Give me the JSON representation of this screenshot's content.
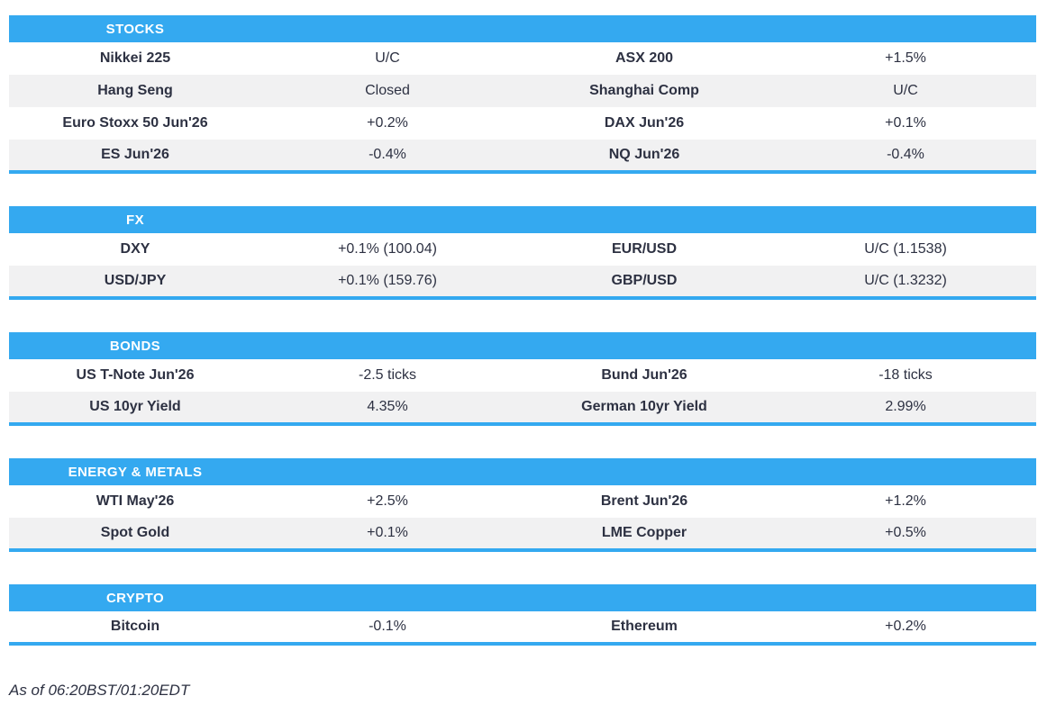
{
  "colors": {
    "accent_blue": "#34a9f0",
    "row_alt": "#f1f1f2",
    "text": "#2d3142",
    "header_text": "#ffffff"
  },
  "sections": {
    "stocks": {
      "title": "STOCKS",
      "rows": [
        {
          "l_label": "Nikkei 225",
          "l_value": "U/C",
          "r_label": "ASX 200",
          "r_value": "+1.5%"
        },
        {
          "l_label": "Hang Seng",
          "l_value": "Closed",
          "r_label": "Shanghai Comp",
          "r_value": "U/C"
        },
        {
          "l_label": "Euro Stoxx 50 Jun'26",
          "l_value": "+0.2%",
          "r_label": "DAX Jun'26",
          "r_value": "+0.1%"
        },
        {
          "l_label": "ES Jun'26",
          "l_value": "-0.4%",
          "r_label": "NQ Jun'26",
          "r_value": "-0.4%"
        }
      ]
    },
    "fx": {
      "title": "FX",
      "rows": [
        {
          "l_label": "DXY",
          "l_value": "+0.1% (100.04)",
          "r_label": "EUR/USD",
          "r_value": "U/C (1.1538)"
        },
        {
          "l_label": "USD/JPY",
          "l_value": "+0.1% (159.76)",
          "r_label": "GBP/USD",
          "r_value": "U/C (1.3232)"
        }
      ]
    },
    "bonds": {
      "title": "BONDS",
      "rows": [
        {
          "l_label": "US T-Note Jun'26",
          "l_value": "-2.5 ticks",
          "r_label": "Bund Jun'26",
          "r_value": "-18 ticks"
        },
        {
          "l_label": "US 10yr Yield",
          "l_value": "4.35%",
          "r_label": "German 10yr Yield",
          "r_value": "2.99%"
        }
      ]
    },
    "energy_metals": {
      "title": "ENERGY & METALS",
      "rows": [
        {
          "l_label": "WTI May'26",
          "l_value": "+2.5%",
          "r_label": "Brent Jun'26",
          "r_value": "+1.2%"
        },
        {
          "l_label": "Spot Gold",
          "l_value": "+0.1%",
          "r_label": "LME Copper",
          "r_value": "+0.5%"
        }
      ]
    },
    "crypto": {
      "title": "CRYPTO",
      "rows": [
        {
          "l_label": "Bitcoin",
          "l_value": "-0.1%",
          "r_label": "Ethereum",
          "r_value": "+0.2%"
        }
      ]
    }
  },
  "footer": {
    "as_of": "As of 06:20BST/01:20EDT"
  }
}
